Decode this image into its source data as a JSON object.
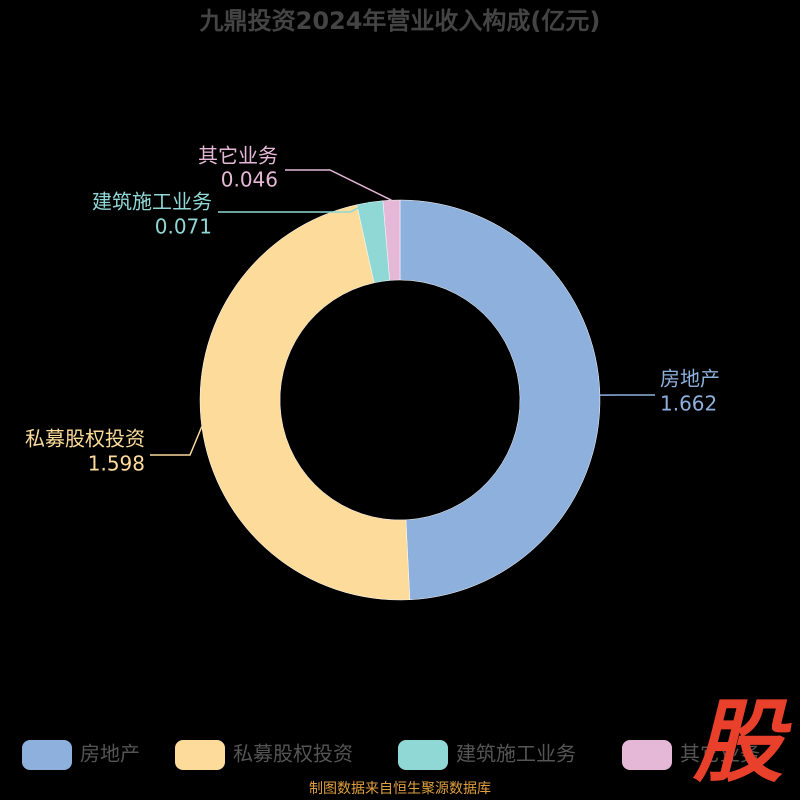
{
  "chart_data": {
    "type": "donut",
    "title": "九鼎投资2024年营业收入构成(亿元)",
    "categories": [
      "房地产",
      "私募股权投资",
      "建筑施工业务",
      "其它业务"
    ],
    "values": [
      1.662,
      1.598,
      0.071,
      0.046
    ],
    "colors": [
      "#8eb0dd",
      "#fddb9b",
      "#8fd8d6",
      "#e6b8d8"
    ],
    "source": "制图数据来自恒生聚源数据库",
    "watermark": "股"
  }
}
